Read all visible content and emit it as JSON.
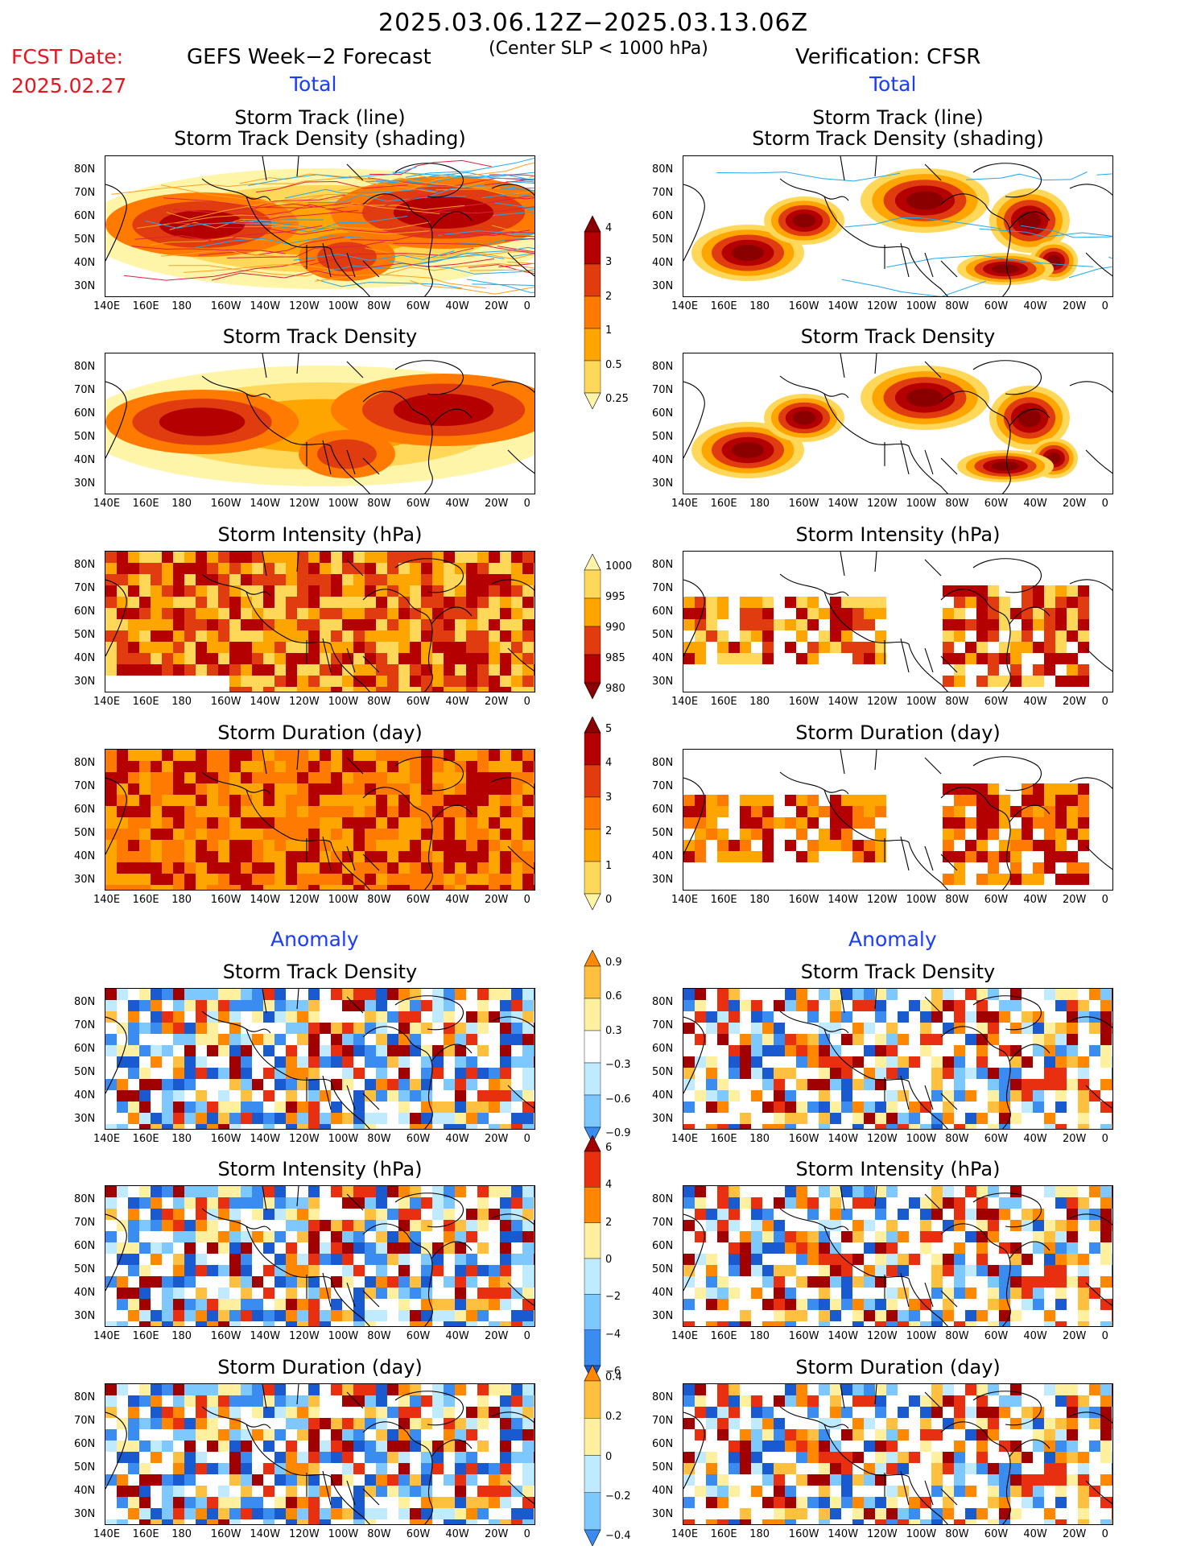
{
  "header": {
    "period": "2025.03.06.12Z−2025.03.13.06Z",
    "criterion": "(Center SLP < 1000 hPa)",
    "fcst_label": "FCST Date:",
    "fcst_date": "2025.02.27",
    "left_title": "GEFS Week−2 Forecast",
    "right_title": "Verification: CFSR"
  },
  "sections": {
    "total": "Total",
    "anomaly": "Anomaly"
  },
  "panel_titles": {
    "track_line": "Storm Track (line)",
    "track_shading": "Storm Track Density (shading)",
    "density": "Storm Track Density",
    "intensity": "Storm Intensity (hPa)",
    "duration": "Storm Duration (day)"
  },
  "axes": {
    "lat": [
      "80N",
      "70N",
      "60N",
      "50N",
      "40N",
      "30N"
    ],
    "lon": [
      "140E",
      "160E",
      "180",
      "160W",
      "140W",
      "120W",
      "100W",
      "80W",
      "60W",
      "40W",
      "20W",
      "0"
    ]
  },
  "colorbars": {
    "density": [
      "4",
      "3",
      "2",
      "1",
      "0.5",
      "0.25"
    ],
    "intensity": [
      "1000",
      "995",
      "990",
      "985",
      "980"
    ],
    "duration": [
      "5",
      "4",
      "3",
      "2",
      "1",
      "0"
    ],
    "density_anom": [
      "0.9",
      "0.6",
      "0.3",
      "−0.3",
      "−0.6",
      "−0.9"
    ],
    "intensity_anom": [
      "6",
      "4",
      "2",
      "0",
      "−2",
      "−4",
      "−6"
    ],
    "duration_anom": [
      "0.4",
      "0.2",
      "0",
      "−0.2",
      "−0.4"
    ]
  },
  "colors": {
    "warm": [
      "#fff5a8",
      "#ffd85a",
      "#ffa500",
      "#ff7a00",
      "#e03c10",
      "#b40000",
      "#8a0000"
    ],
    "anom_pos": [
      "#fff0a0",
      "#ffc040",
      "#ff8800",
      "#e83010",
      "#a00000"
    ],
    "anom_neg": [
      "#bfeaff",
      "#7cc8ff",
      "#3a8cf0",
      "#1a5ad0"
    ],
    "track_orange": "#ffa020",
    "track_blue": "#20a8f0",
    "track_red": "#e02040"
  }
}
